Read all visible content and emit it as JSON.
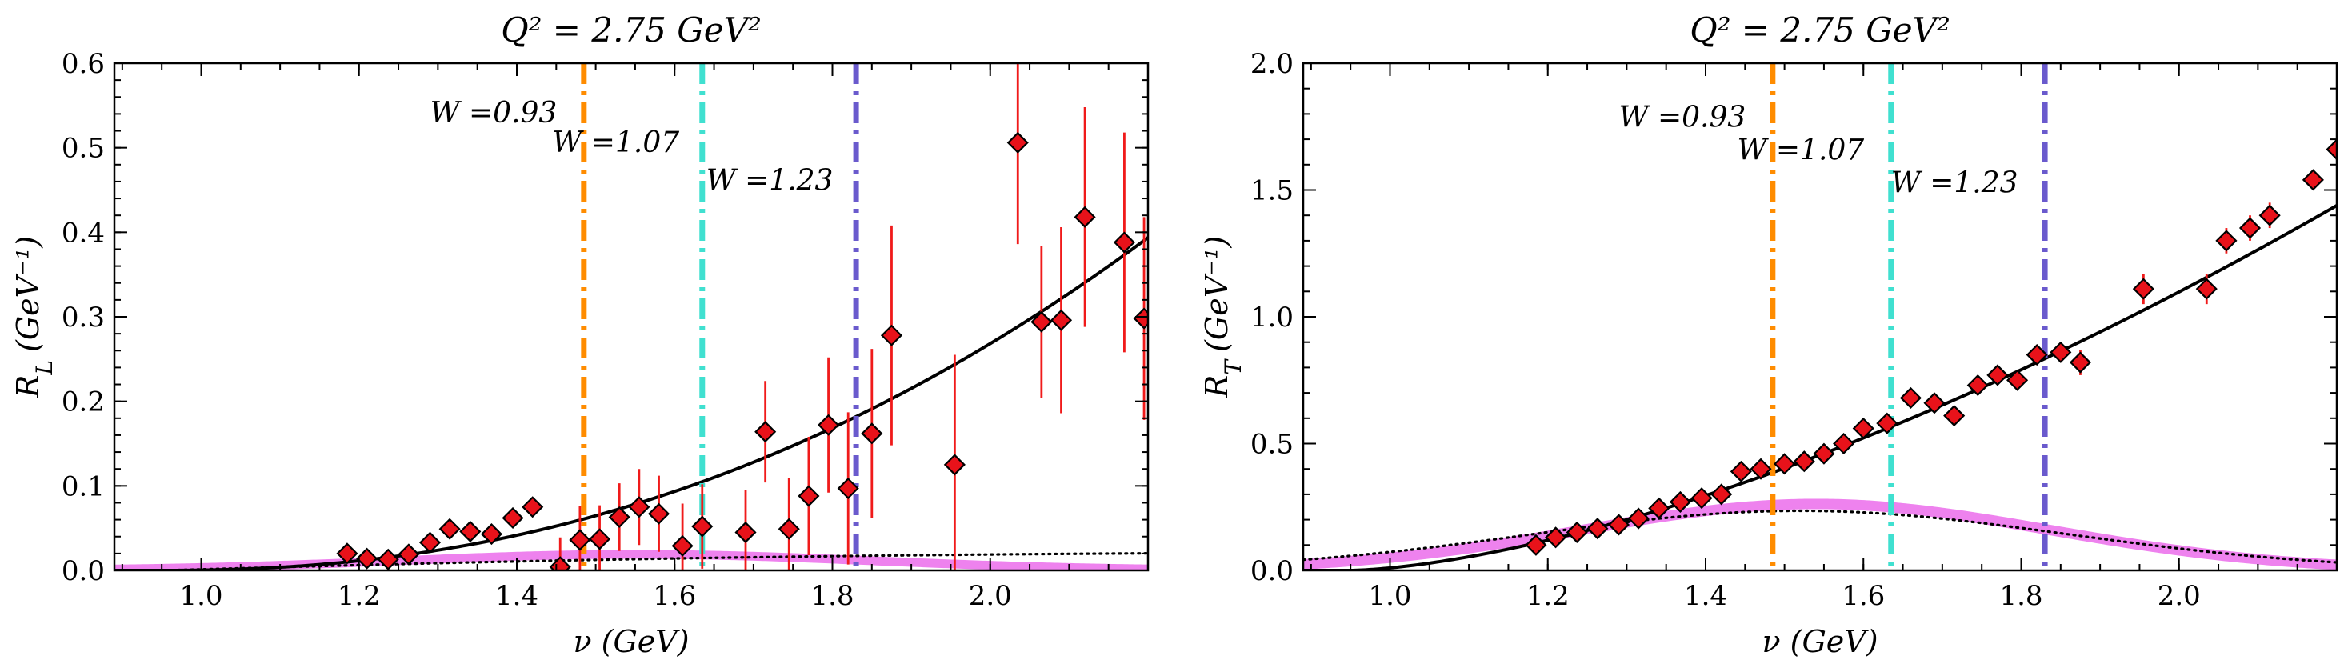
{
  "chart_data": [
    {
      "type": "scatter",
      "title": "Q² = 2.75 GeV²",
      "xlabel": "ν (GeV)",
      "ylabel": "R_L (GeV⁻¹)",
      "ylabel_main": "R",
      "ylabel_sub": "L",
      "ylabel_unit": "(GeV⁻¹)",
      "xlim": [
        0.89,
        2.2
      ],
      "ylim": [
        0.0,
        0.6
      ],
      "xticks": [
        1.0,
        1.2,
        1.4,
        1.6,
        1.8,
        2.0
      ],
      "xtick_labels": [
        "1.0",
        "1.2",
        "1.4",
        "1.6",
        "1.8",
        "2.0"
      ],
      "yticks": [
        0.0,
        0.1,
        0.2,
        0.3,
        0.4,
        0.5,
        0.6
      ],
      "ytick_labels": [
        "0.0",
        "0.1",
        "0.2",
        "0.3",
        "0.4",
        "0.5",
        "0.6"
      ],
      "grid": false,
      "colors": {
        "points": "#e8121a",
        "errorbars": "#f01a1a",
        "fit": "#000000",
        "band": "#ee82ee",
        "dotted": "#000000"
      },
      "points": [
        {
          "x": 1.185,
          "y": 0.02,
          "err": 0.0
        },
        {
          "x": 1.21,
          "y": 0.014,
          "err": 0.0
        },
        {
          "x": 1.237,
          "y": 0.013,
          "err": 0.0
        },
        {
          "x": 1.263,
          "y": 0.019,
          "err": 0.0
        },
        {
          "x": 1.29,
          "y": 0.033,
          "err": 0.0
        },
        {
          "x": 1.315,
          "y": 0.049,
          "err": 0.0
        },
        {
          "x": 1.341,
          "y": 0.046,
          "err": 0.0
        },
        {
          "x": 1.368,
          "y": 0.043,
          "err": 0.0
        },
        {
          "x": 1.395,
          "y": 0.062,
          "err": 0.0
        },
        {
          "x": 1.42,
          "y": 0.075,
          "err": 0.0
        },
        {
          "x": 1.455,
          "y": 0.004,
          "err": 0.035
        },
        {
          "x": 1.48,
          "y": 0.036,
          "err": 0.04
        },
        {
          "x": 1.505,
          "y": 0.037,
          "err": 0.04
        },
        {
          "x": 1.53,
          "y": 0.063,
          "err": 0.04
        },
        {
          "x": 1.555,
          "y": 0.075,
          "err": 0.045
        },
        {
          "x": 1.58,
          "y": 0.067,
          "err": 0.045
        },
        {
          "x": 1.61,
          "y": 0.029,
          "err": 0.05
        },
        {
          "x": 1.635,
          "y": 0.052,
          "err": 0.05
        },
        {
          "x": 1.69,
          "y": 0.045,
          "err": 0.05
        },
        {
          "x": 1.715,
          "y": 0.164,
          "err": 0.06
        },
        {
          "x": 1.745,
          "y": 0.049,
          "err": 0.06
        },
        {
          "x": 1.77,
          "y": 0.088,
          "err": 0.07
        },
        {
          "x": 1.795,
          "y": 0.172,
          "err": 0.08
        },
        {
          "x": 1.82,
          "y": 0.097,
          "err": 0.09
        },
        {
          "x": 1.85,
          "y": 0.162,
          "err": 0.1
        },
        {
          "x": 1.875,
          "y": 0.278,
          "err": 0.13
        },
        {
          "x": 1.955,
          "y": 0.125,
          "err": 0.13
        },
        {
          "x": 2.035,
          "y": 0.506,
          "err": 0.12
        },
        {
          "x": 2.065,
          "y": 0.294,
          "err": 0.09
        },
        {
          "x": 2.09,
          "y": 0.296,
          "err": 0.11
        },
        {
          "x": 2.12,
          "y": 0.418,
          "err": 0.13
        },
        {
          "x": 2.17,
          "y": 0.388,
          "err": 0.13
        },
        {
          "x": 2.195,
          "y": 0.298,
          "err": 0.12
        }
      ],
      "vlines": [
        {
          "x": 1.485,
          "color": "#ff8c00",
          "label": "W =0.93",
          "label_x": 1.29,
          "label_y": 0.53
        },
        {
          "x": 1.635,
          "color": "#40e0d0",
          "label": "W =1.07",
          "label_x": 1.445,
          "label_y": 0.495
        },
        {
          "x": 1.83,
          "color": "#6a5acd",
          "label": "W =1.23",
          "label_x": 1.64,
          "label_y": 0.45
        }
      ]
    },
    {
      "type": "scatter",
      "title": "Q² = 2.75 GeV²",
      "xlabel": "ν (GeV)",
      "ylabel": "R_T (GeV⁻¹)",
      "ylabel_main": "R",
      "ylabel_sub": "T",
      "ylabel_unit": "(GeV⁻¹)",
      "xlim": [
        0.89,
        2.2
      ],
      "ylim": [
        0.0,
        2.0
      ],
      "xticks": [
        1.0,
        1.2,
        1.4,
        1.6,
        1.8,
        2.0
      ],
      "xtick_labels": [
        "1.0",
        "1.2",
        "1.4",
        "1.6",
        "1.8",
        "2.0"
      ],
      "yticks": [
        0.0,
        0.5,
        1.0,
        1.5,
        2.0
      ],
      "ytick_labels": [
        "0.0",
        "0.5",
        "1.0",
        "1.5",
        "2.0"
      ],
      "grid": false,
      "colors": {
        "points": "#e8121a",
        "errorbars": "#f01a1a",
        "fit": "#000000",
        "band": "#ee82ee",
        "dotted": "#000000"
      },
      "points": [
        {
          "x": 1.185,
          "y": 0.1,
          "err": 0.0
        },
        {
          "x": 1.21,
          "y": 0.13,
          "err": 0.0
        },
        {
          "x": 1.237,
          "y": 0.15,
          "err": 0.0
        },
        {
          "x": 1.263,
          "y": 0.165,
          "err": 0.0
        },
        {
          "x": 1.29,
          "y": 0.18,
          "err": 0.0
        },
        {
          "x": 1.315,
          "y": 0.205,
          "err": 0.0
        },
        {
          "x": 1.341,
          "y": 0.245,
          "err": 0.0
        },
        {
          "x": 1.368,
          "y": 0.27,
          "err": 0.0
        },
        {
          "x": 1.395,
          "y": 0.285,
          "err": 0.0
        },
        {
          "x": 1.42,
          "y": 0.3,
          "err": 0.0
        },
        {
          "x": 1.445,
          "y": 0.39,
          "err": 0.0
        },
        {
          "x": 1.47,
          "y": 0.4,
          "err": 0.0
        },
        {
          "x": 1.5,
          "y": 0.42,
          "err": 0.0
        },
        {
          "x": 1.525,
          "y": 0.43,
          "err": 0.0
        },
        {
          "x": 1.55,
          "y": 0.46,
          "err": 0.0
        },
        {
          "x": 1.575,
          "y": 0.5,
          "err": 0.02
        },
        {
          "x": 1.6,
          "y": 0.56,
          "err": 0.02
        },
        {
          "x": 1.63,
          "y": 0.58,
          "err": 0.02
        },
        {
          "x": 1.66,
          "y": 0.68,
          "err": 0.02
        },
        {
          "x": 1.69,
          "y": 0.66,
          "err": 0.02
        },
        {
          "x": 1.715,
          "y": 0.61,
          "err": 0.03
        },
        {
          "x": 1.745,
          "y": 0.73,
          "err": 0.03
        },
        {
          "x": 1.77,
          "y": 0.77,
          "err": 0.03
        },
        {
          "x": 1.795,
          "y": 0.75,
          "err": 0.04
        },
        {
          "x": 1.82,
          "y": 0.85,
          "err": 0.04
        },
        {
          "x": 1.85,
          "y": 0.86,
          "err": 0.04
        },
        {
          "x": 1.875,
          "y": 0.82,
          "err": 0.05
        },
        {
          "x": 1.955,
          "y": 1.11,
          "err": 0.06
        },
        {
          "x": 2.035,
          "y": 1.11,
          "err": 0.06
        },
        {
          "x": 2.06,
          "y": 1.3,
          "err": 0.05
        },
        {
          "x": 2.09,
          "y": 1.35,
          "err": 0.05
        },
        {
          "x": 2.115,
          "y": 1.4,
          "err": 0.05
        },
        {
          "x": 2.17,
          "y": 1.54,
          "err": 0.04
        },
        {
          "x": 2.2,
          "y": 1.66,
          "err": 0.04
        }
      ],
      "vlines": [
        {
          "x": 1.485,
          "color": "#ff8c00",
          "label": "W =0.93",
          "label_x": 1.29,
          "label_y": 1.75
        },
        {
          "x": 1.635,
          "color": "#40e0d0",
          "label": "W =1.07",
          "label_x": 1.44,
          "label_y": 1.62
        },
        {
          "x": 1.83,
          "color": "#6a5acd",
          "label": "W =1.23",
          "label_x": 1.635,
          "label_y": 1.49
        }
      ]
    }
  ]
}
